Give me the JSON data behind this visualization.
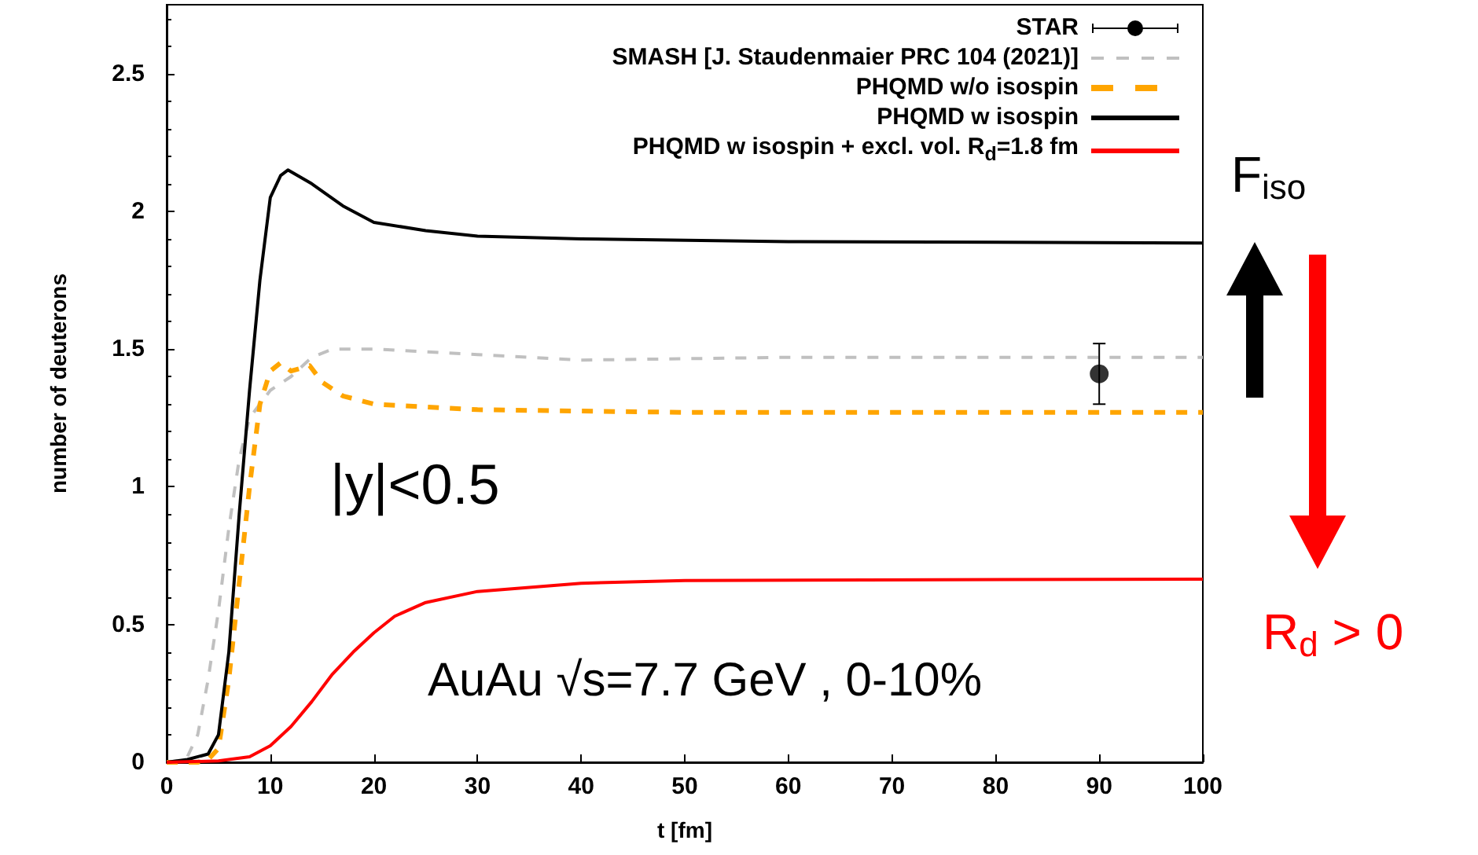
{
  "chart_data": {
    "type": "line",
    "xlabel": "t [fm]",
    "ylabel": "number of deuterons",
    "xlim": [
      0,
      100
    ],
    "xticks": [
      0,
      10,
      20,
      30,
      40,
      50,
      60,
      70,
      80,
      90,
      100
    ],
    "ylim": [
      0,
      2.75
    ],
    "yticks": [
      0,
      0.5,
      1,
      1.5,
      2,
      2.5
    ],
    "grid": false,
    "legend": "top right",
    "annotations": [
      "|y|<0.5",
      "AuAu √s=7.7 GeV , 0-10%",
      "F$_{iso}$",
      "R$_{d}$ > 0"
    ],
    "series": [
      {
        "name": "STAR",
        "type": "scatter",
        "marker": "circle",
        "color": "#000000",
        "x": [
          90
        ],
        "values": [
          1.41
        ],
        "errors": [
          0.11
        ]
      },
      {
        "name": "SMASH [J. Staudenmaier PRC 104 (2021)]",
        "line_style": "dashed",
        "color": "#c0c0c0",
        "x": [
          0,
          1,
          2,
          3,
          4,
          5,
          6,
          7,
          8,
          9,
          10,
          12,
          14,
          16,
          20,
          30,
          40,
          60,
          100
        ],
        "values": [
          0,
          0.005,
          0.02,
          0.1,
          0.3,
          0.55,
          0.85,
          1.1,
          1.25,
          1.3,
          1.35,
          1.4,
          1.47,
          1.5,
          1.5,
          1.48,
          1.46,
          1.47,
          1.47
        ]
      },
      {
        "name": "PHQMD w/o isospin",
        "line_style": "dashed",
        "color": "#ffa500",
        "x": [
          0,
          3,
          4,
          5,
          6,
          7,
          8,
          9,
          10,
          11,
          12,
          13.8,
          15,
          17,
          20,
          30,
          50,
          100
        ],
        "values": [
          0,
          0,
          0.01,
          0.05,
          0.3,
          0.65,
          1,
          1.3,
          1.42,
          1.45,
          1.42,
          1.44,
          1.38,
          1.33,
          1.3,
          1.28,
          1.27,
          1.27
        ]
      },
      {
        "name": "PHQMD w isospin",
        "line_style": "solid",
        "color": "#000000",
        "x": [
          0,
          2,
          4,
          5,
          6,
          7,
          8,
          9,
          10,
          11,
          11.7,
          14,
          17,
          20,
          25,
          30,
          40,
          60,
          100
        ],
        "values": [
          0,
          0.01,
          0.03,
          0.1,
          0.4,
          0.9,
          1.35,
          1.75,
          2.05,
          2.13,
          2.15,
          2.1,
          2.02,
          1.96,
          1.93,
          1.91,
          1.9,
          1.89,
          1.885
        ]
      },
      {
        "name": "PHQMD w isospin + excl. vol. R$_{d}$=1.8 fm",
        "line_style": "solid",
        "color": "#ff0000",
        "x": [
          0,
          5,
          8,
          10,
          12,
          14,
          16,
          18,
          20,
          22,
          25,
          30,
          40,
          50,
          100
        ],
        "values": [
          0,
          0.005,
          0.02,
          0.06,
          0.13,
          0.22,
          0.32,
          0.4,
          0.47,
          0.53,
          0.58,
          0.62,
          0.65,
          0.66,
          0.665
        ]
      }
    ]
  }
}
